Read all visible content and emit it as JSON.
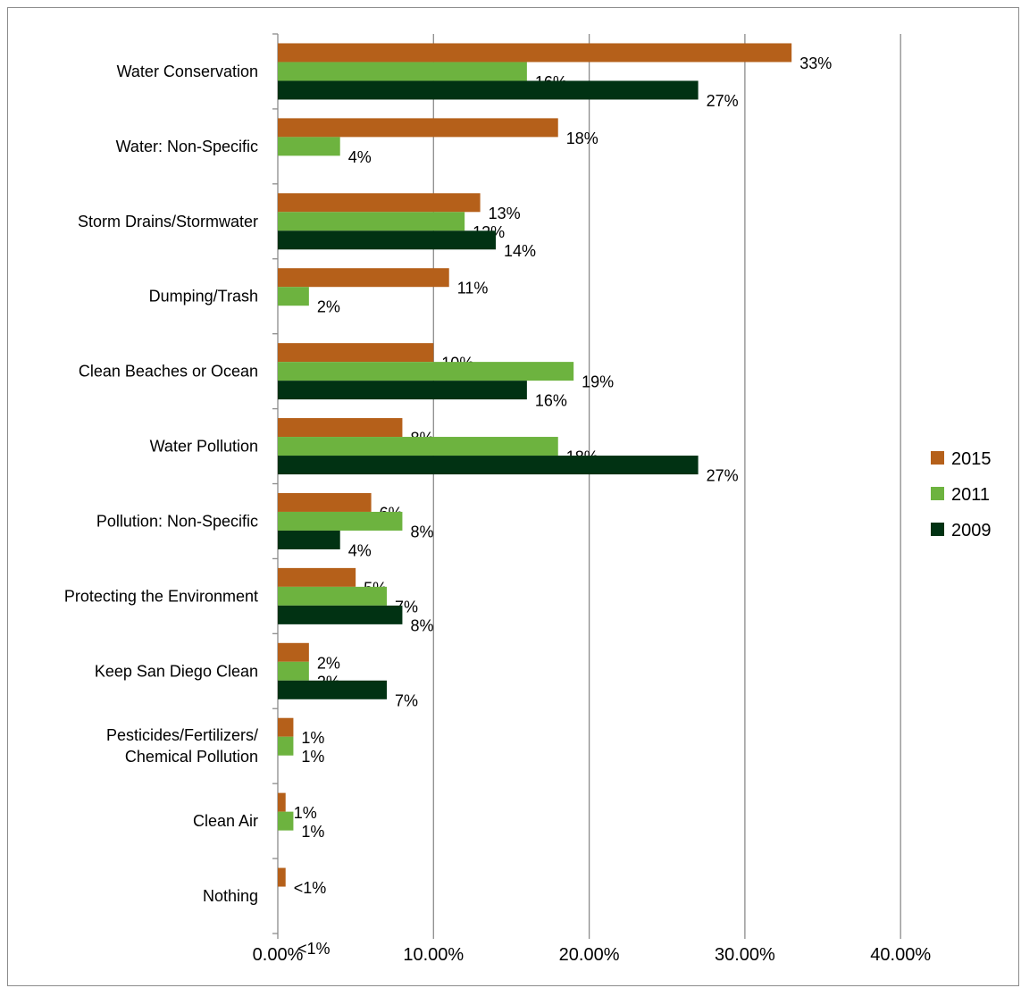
{
  "chart_data": {
    "type": "bar",
    "orientation": "horizontal",
    "categories": [
      "Water Conservation",
      "Water: Non-Specific",
      "Storm Drains/Stormwater",
      "Dumping/Trash",
      "Clean Beaches or Ocean",
      "Water Pollution",
      "Pollution: Non-Specific",
      "Protecting the Environment",
      "Keep San Diego Clean",
      "Pesticides/Fertilizers/ Chemical Pollution",
      "Clean Air",
      "Nothing"
    ],
    "series": [
      {
        "name": "2015",
        "color": "#b5601a",
        "values": [
          33,
          18,
          13,
          11,
          10,
          8,
          6,
          5,
          2,
          1,
          0.5,
          0.5
        ],
        "labels": [
          "33%",
          "18%",
          "13%",
          "11%",
          "10%",
          "8%",
          "6%",
          "5%",
          "2%",
          "1%",
          "1%",
          "<1%"
        ]
      },
      {
        "name": "2011",
        "color": "#6db33f",
        "values": [
          16,
          4,
          12,
          2,
          19,
          18,
          8,
          7,
          2,
          1,
          1,
          null
        ],
        "labels": [
          "16%",
          "4%",
          "12%",
          "2%",
          "19%",
          "18%",
          "8%",
          "7%",
          "2%",
          "1%",
          "1%",
          null
        ]
      },
      {
        "name": "2009",
        "color": "#013213",
        "values": [
          27,
          null,
          14,
          null,
          16,
          27,
          4,
          8,
          7,
          null,
          null,
          null
        ],
        "labels": [
          "27%",
          null,
          "14%",
          null,
          "16%",
          "27%",
          "4%",
          "8%",
          "7%",
          null,
          null,
          null
        ]
      }
    ],
    "x_ticks": [
      "0.00%",
      "10.00%",
      "20.00%",
      "30.00%",
      "40.00%"
    ],
    "xlim": [
      0,
      40
    ],
    "extra_annotation": "<1%",
    "grid": true,
    "legend_position": "right"
  }
}
